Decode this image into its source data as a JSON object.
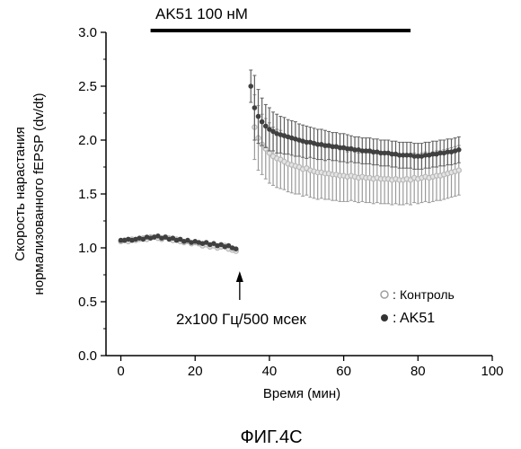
{
  "chart_data": {
    "type": "scatter",
    "title": "",
    "xlabel": "Время (мин)",
    "ylabel": [
      "Скорость нарастания",
      "нормализованного  fEPSP (dv/dt)"
    ],
    "xlim": [
      -4,
      100
    ],
    "ylim": [
      0,
      3.0
    ],
    "x_ticks": [
      "0",
      "20",
      "40",
      "60",
      "80",
      "100"
    ],
    "y_ticks": [
      "0.0",
      "0.5",
      "1.0",
      "1.5",
      "2.0",
      "2.5",
      "3.0"
    ],
    "grid": false,
    "legend_position": "bottom-right",
    "drug_bar": {
      "label": "AK51 100 нМ",
      "x_start": 8,
      "x_end": 78
    },
    "stimulus": {
      "label": "2x100 Гц/500 мсек",
      "x": 32
    },
    "figure_caption": "ФИГ.4С",
    "colors": {
      "control": "#b8b8b8",
      "ak51": "#404040",
      "ak51_err": "#606060",
      "control_err": "#9a9a9a"
    },
    "series": [
      {
        "name": "Контроль",
        "marker": "open-circle",
        "x": [
          0,
          1,
          2,
          3,
          4,
          5,
          6,
          7,
          8,
          9,
          10,
          11,
          12,
          13,
          14,
          15,
          16,
          17,
          18,
          19,
          20,
          21,
          22,
          23,
          24,
          25,
          26,
          27,
          28,
          29,
          30,
          31,
          36,
          37,
          38,
          39,
          40,
          41,
          42,
          43,
          44,
          45,
          46,
          47,
          48,
          49,
          50,
          51,
          52,
          53,
          54,
          55,
          56,
          57,
          58,
          59,
          60,
          61,
          62,
          63,
          64,
          65,
          66,
          67,
          68,
          69,
          70,
          71,
          72,
          73,
          74,
          75,
          76,
          77,
          78,
          79,
          80,
          81,
          82,
          83,
          84,
          85,
          86,
          87,
          88,
          89,
          90,
          91
        ],
        "y": [
          1.06,
          1.07,
          1.06,
          1.08,
          1.07,
          1.08,
          1.09,
          1.08,
          1.1,
          1.1,
          1.09,
          1.08,
          1.1,
          1.09,
          1.07,
          1.08,
          1.06,
          1.05,
          1.06,
          1.04,
          1.05,
          1.04,
          1.02,
          1.03,
          1.01,
          1.02,
          1.0,
          1.01,
          1.02,
          0.99,
          0.98,
          0.97,
          2.12,
          2.02,
          1.96,
          1.92,
          1.88,
          1.85,
          1.83,
          1.82,
          1.8,
          1.78,
          1.77,
          1.76,
          1.75,
          1.73,
          1.74,
          1.72,
          1.71,
          1.7,
          1.7,
          1.69,
          1.69,
          1.68,
          1.68,
          1.67,
          1.67,
          1.66,
          1.67,
          1.66,
          1.65,
          1.66,
          1.65,
          1.65,
          1.64,
          1.65,
          1.64,
          1.64,
          1.64,
          1.63,
          1.64,
          1.63,
          1.63,
          1.64,
          1.63,
          1.65,
          1.64,
          1.65,
          1.66,
          1.65,
          1.66,
          1.67,
          1.67,
          1.68,
          1.69,
          1.7,
          1.71,
          1.72
        ],
        "err": [
          0.03,
          0.03,
          0.03,
          0.03,
          0.03,
          0.03,
          0.03,
          0.03,
          0.03,
          0.03,
          0.03,
          0.03,
          0.03,
          0.03,
          0.03,
          0.03,
          0.03,
          0.03,
          0.03,
          0.03,
          0.03,
          0.03,
          0.03,
          0.03,
          0.03,
          0.03,
          0.03,
          0.03,
          0.03,
          0.03,
          0.03,
          0.03,
          0.3,
          0.3,
          0.28,
          0.28,
          0.28,
          0.27,
          0.27,
          0.27,
          0.26,
          0.26,
          0.26,
          0.26,
          0.25,
          0.25,
          0.25,
          0.25,
          0.25,
          0.25,
          0.24,
          0.24,
          0.24,
          0.24,
          0.24,
          0.24,
          0.24,
          0.23,
          0.23,
          0.23,
          0.23,
          0.23,
          0.23,
          0.23,
          0.23,
          0.23,
          0.23,
          0.23,
          0.23,
          0.23,
          0.23,
          0.23,
          0.23,
          0.23,
          0.23,
          0.23,
          0.23,
          0.23,
          0.23,
          0.23,
          0.23,
          0.23,
          0.23,
          0.23,
          0.23,
          0.23,
          0.23,
          0.23
        ]
      },
      {
        "name": "AK51",
        "marker": "filled-circle",
        "x": [
          0,
          1,
          2,
          3,
          4,
          5,
          6,
          7,
          8,
          9,
          10,
          11,
          12,
          13,
          14,
          15,
          16,
          17,
          18,
          19,
          20,
          21,
          22,
          23,
          24,
          25,
          26,
          27,
          28,
          29,
          30,
          31,
          35,
          36,
          37,
          38,
          39,
          40,
          41,
          42,
          43,
          44,
          45,
          46,
          47,
          48,
          49,
          50,
          51,
          52,
          53,
          54,
          55,
          56,
          57,
          58,
          59,
          60,
          61,
          62,
          63,
          64,
          65,
          66,
          67,
          68,
          69,
          70,
          71,
          72,
          73,
          74,
          75,
          76,
          77,
          78,
          79,
          80,
          81,
          82,
          83,
          84,
          85,
          86,
          87,
          88,
          89,
          90,
          91
        ],
        "y": [
          1.07,
          1.07,
          1.08,
          1.07,
          1.08,
          1.09,
          1.08,
          1.1,
          1.09,
          1.1,
          1.11,
          1.09,
          1.1,
          1.08,
          1.09,
          1.07,
          1.08,
          1.06,
          1.07,
          1.05,
          1.06,
          1.05,
          1.04,
          1.05,
          1.03,
          1.04,
          1.02,
          1.03,
          1.01,
          1.02,
          1.0,
          0.99,
          2.5,
          2.3,
          2.22,
          2.17,
          2.13,
          2.1,
          2.08,
          2.06,
          2.05,
          2.04,
          2.03,
          2.02,
          2.01,
          2.0,
          1.99,
          1.98,
          1.98,
          1.97,
          1.96,
          1.96,
          1.95,
          1.95,
          1.94,
          1.94,
          1.93,
          1.93,
          1.92,
          1.92,
          1.91,
          1.91,
          1.9,
          1.9,
          1.9,
          1.89,
          1.89,
          1.88,
          1.88,
          1.88,
          1.87,
          1.87,
          1.86,
          1.86,
          1.86,
          1.86,
          1.85,
          1.85,
          1.85,
          1.86,
          1.86,
          1.87,
          1.87,
          1.88,
          1.88,
          1.89,
          1.89,
          1.9,
          1.91
        ],
        "err": [
          0.03,
          0.03,
          0.03,
          0.03,
          0.03,
          0.03,
          0.03,
          0.03,
          0.03,
          0.03,
          0.03,
          0.03,
          0.03,
          0.03,
          0.03,
          0.03,
          0.03,
          0.03,
          0.03,
          0.03,
          0.03,
          0.03,
          0.03,
          0.03,
          0.03,
          0.03,
          0.03,
          0.03,
          0.03,
          0.03,
          0.03,
          0.03,
          0.15,
          0.3,
          0.25,
          0.22,
          0.2,
          0.2,
          0.18,
          0.18,
          0.17,
          0.17,
          0.16,
          0.16,
          0.16,
          0.15,
          0.15,
          0.15,
          0.14,
          0.14,
          0.14,
          0.14,
          0.14,
          0.13,
          0.13,
          0.13,
          0.13,
          0.13,
          0.13,
          0.12,
          0.12,
          0.12,
          0.12,
          0.12,
          0.12,
          0.12,
          0.12,
          0.12,
          0.12,
          0.12,
          0.12,
          0.12,
          0.12,
          0.12,
          0.12,
          0.12,
          0.12,
          0.12,
          0.12,
          0.12,
          0.12,
          0.12,
          0.12,
          0.12,
          0.12,
          0.12,
          0.12,
          0.12,
          0.12
        ]
      }
    ]
  }
}
